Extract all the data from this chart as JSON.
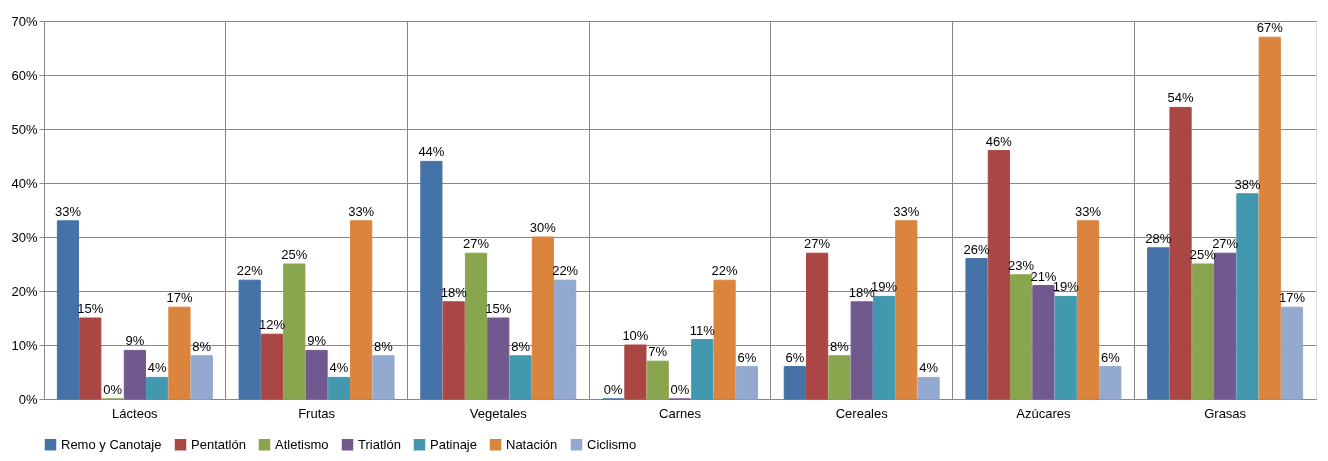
{
  "chart_data": {
    "type": "bar",
    "categories": [
      "Lácteos",
      "Frutas",
      "Vegetales",
      "Carnes",
      "Cereales",
      "Azúcares",
      "Grasas"
    ],
    "series": [
      {
        "name": "Remo y Canotaje",
        "color": "#4572a7",
        "values": [
          33,
          22,
          44,
          0,
          6,
          26,
          28
        ],
        "value_labels": [
          "33%",
          "22%",
          "44%",
          "0%",
          "6%",
          "26%",
          "28%"
        ]
      },
      {
        "name": "Pentatlón",
        "color": "#aa4643",
        "values": [
          15,
          12,
          18,
          10,
          27,
          46,
          54
        ],
        "value_labels": [
          "15%",
          "12%",
          "18%",
          "10%",
          "27%",
          "46%",
          "54%"
        ]
      },
      {
        "name": "Atletismo",
        "color": "#89a54e",
        "values": [
          0,
          25,
          27,
          7,
          8,
          23,
          25
        ],
        "value_labels": [
          "0%",
          "25%",
          "27%",
          "7%",
          "8%",
          "23%",
          "25%"
        ]
      },
      {
        "name": "Triatlón",
        "color": "#71588f",
        "values": [
          9,
          9,
          15,
          0,
          18,
          21,
          27
        ],
        "value_labels": [
          "9%",
          "9%",
          "15%",
          "0%",
          "18%",
          "21%",
          "27%"
        ]
      },
      {
        "name": "Patinaje",
        "color": "#4198af",
        "values": [
          4,
          4,
          8,
          11,
          19,
          19,
          38
        ],
        "value_labels": [
          "4%",
          "4%",
          "8%",
          "11%",
          "19%",
          "19%",
          "38%"
        ]
      },
      {
        "name": "Natación",
        "color": "#db843d",
        "values": [
          17,
          33,
          30,
          22,
          33,
          33,
          67
        ],
        "value_labels": [
          "17%",
          "33%",
          "30%",
          "22%",
          "33%",
          "33%",
          "67%"
        ]
      },
      {
        "name": "Ciclismo",
        "color": "#93a9cf",
        "values": [
          8,
          8,
          22,
          6,
          4,
          6,
          17
        ],
        "value_labels": [
          "8%",
          "8%",
          "22%",
          "6%",
          "4%",
          "6%",
          "17%"
        ]
      }
    ],
    "ylim": [
      0,
      70
    ],
    "yticks": [
      {
        "value": 0,
        "label": "0%"
      },
      {
        "value": 10,
        "label": "10%"
      },
      {
        "value": 20,
        "label": "20%"
      },
      {
        "value": 30,
        "label": "30%"
      },
      {
        "value": 40,
        "label": "40%"
      },
      {
        "value": 50,
        "label": "50%"
      },
      {
        "value": 60,
        "label": "60%"
      },
      {
        "value": 70,
        "label": "70%"
      }
    ],
    "grid": true,
    "legend": "bottom"
  }
}
